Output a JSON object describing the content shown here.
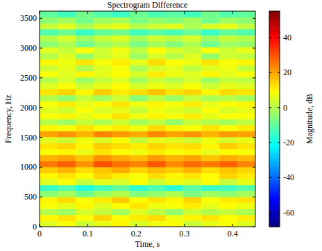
{
  "chart_data": {
    "type": "heatmap",
    "title": "Spectrogram Difference",
    "x_label": "Time, s",
    "y_label": "Frequency, Hz",
    "xlim": [
      0,
      0.447
    ],
    "xticks": [
      0,
      0.1,
      0.2,
      0.3,
      0.4
    ],
    "ylim": [
      0,
      3620
    ],
    "yticks": [
      0,
      500,
      1000,
      1500,
      2000,
      2500,
      3000,
      3500
    ],
    "colorbar": {
      "label": "Magnitude, dB",
      "range": [
        -68,
        55
      ],
      "ticks": [
        -60,
        -40,
        -20,
        0,
        20,
        40
      ]
    },
    "cells": [
      [
        5,
        8,
        3,
        6,
        10,
        4,
        7,
        9,
        2,
        6,
        8,
        5
      ],
      [
        10,
        12,
        8,
        14,
        9,
        11,
        13,
        7,
        10,
        12,
        9,
        11
      ],
      [
        0,
        -3,
        4,
        2,
        -2,
        5,
        1,
        -4,
        3,
        0,
        2,
        -1
      ],
      [
        8,
        6,
        10,
        5,
        9,
        12,
        7,
        8,
        11,
        6,
        9,
        7
      ],
      [
        10,
        13,
        8,
        11,
        15,
        9,
        12,
        10,
        14,
        8,
        11,
        12
      ],
      [
        -5,
        -2,
        -8,
        -3,
        0,
        -6,
        -4,
        -1,
        -7,
        -3,
        -5,
        -2
      ],
      [
        -15,
        -12,
        -18,
        -14,
        -10,
        -16,
        -13,
        -17,
        -11,
        -15,
        -14,
        -12
      ],
      [
        5,
        8,
        2,
        6,
        4,
        9,
        3,
        7,
        5,
        8,
        2,
        6
      ],
      [
        10,
        12,
        9,
        14,
        11,
        8,
        13,
        10,
        12,
        9,
        14,
        11
      ],
      [
        15,
        18,
        13,
        16,
        19,
        14,
        17,
        15,
        18,
        13,
        16,
        14
      ],
      [
        25,
        28,
        22,
        30,
        26,
        24,
        29,
        23,
        27,
        25,
        28,
        24
      ],
      [
        18,
        20,
        16,
        22,
        19,
        17,
        21,
        18,
        20,
        16,
        19,
        17
      ],
      [
        8,
        10,
        6,
        12,
        9,
        7,
        11,
        8,
        10,
        6,
        9,
        8
      ],
      [
        12,
        14,
        10,
        15,
        13,
        11,
        14,
        12,
        13,
        10,
        15,
        12
      ],
      [
        5,
        3,
        7,
        4,
        8,
        2,
        6,
        5,
        3,
        7,
        4,
        6
      ],
      [
        20,
        22,
        18,
        24,
        21,
        19,
        23,
        20,
        22,
        18,
        21,
        20
      ],
      [
        10,
        8,
        12,
        9,
        11,
        7,
        13,
        10,
        8,
        12,
        9,
        11
      ],
      [
        0,
        -3,
        2,
        -1,
        3,
        -2,
        1,
        -4,
        2,
        0,
        -2,
        1
      ],
      [
        8,
        10,
        6,
        9,
        12,
        7,
        10,
        8,
        11,
        6,
        9,
        8
      ],
      [
        5,
        3,
        8,
        4,
        6,
        2,
        7,
        5,
        3,
        8,
        4,
        6
      ],
      [
        8,
        11,
        6,
        9,
        12,
        7,
        10,
        8,
        11,
        6,
        9,
        10
      ],
      [
        0,
        -4,
        2,
        -2,
        3,
        -5,
        1,
        -3,
        2,
        -1,
        0,
        -2
      ],
      [
        12,
        14,
        10,
        15,
        11,
        13,
        16,
        12,
        14,
        10,
        13,
        12
      ],
      [
        5,
        8,
        3,
        6,
        9,
        4,
        7,
        5,
        8,
        3,
        6,
        5
      ],
      [
        0,
        4,
        -3,
        2,
        5,
        -2,
        3,
        0,
        4,
        -3,
        2,
        1
      ],
      [
        8,
        5,
        10,
        6,
        9,
        4,
        11,
        7,
        5,
        10,
        6,
        8
      ],
      [
        3,
        6,
        0,
        5,
        8,
        -1,
        4,
        6,
        1,
        5,
        7,
        2
      ],
      [
        10,
        7,
        12,
        8,
        11,
        6,
        13,
        9,
        7,
        12,
        8,
        10
      ],
      [
        0,
        5,
        -4,
        3,
        6,
        -3,
        4,
        0,
        5,
        -4,
        3,
        1
      ],
      [
        5,
        2,
        8,
        3,
        7,
        1,
        9,
        4,
        2,
        8,
        3,
        6
      ],
      [
        -5,
        -1,
        -8,
        -3,
        0,
        -7,
        -2,
        -6,
        -1,
        -8,
        -3,
        -4
      ],
      [
        0,
        4,
        -3,
        2,
        5,
        -2,
        3,
        1,
        4,
        -3,
        2,
        0
      ],
      [
        -12,
        -9,
        -15,
        -10,
        -8,
        -14,
        -11,
        -13,
        -9,
        -15,
        -10,
        -12
      ],
      [
        2,
        5,
        -1,
        4,
        6,
        0,
        3,
        5,
        -1,
        4,
        6,
        1
      ],
      [
        -5,
        -2,
        -8,
        -3,
        -1,
        -7,
        -4,
        -6,
        -2,
        -8,
        -3,
        -5
      ],
      [
        -10,
        -14,
        -8,
        -12,
        -15,
        -9,
        -13,
        -11,
        -14,
        -8,
        -12,
        -10
      ]
    ]
  }
}
